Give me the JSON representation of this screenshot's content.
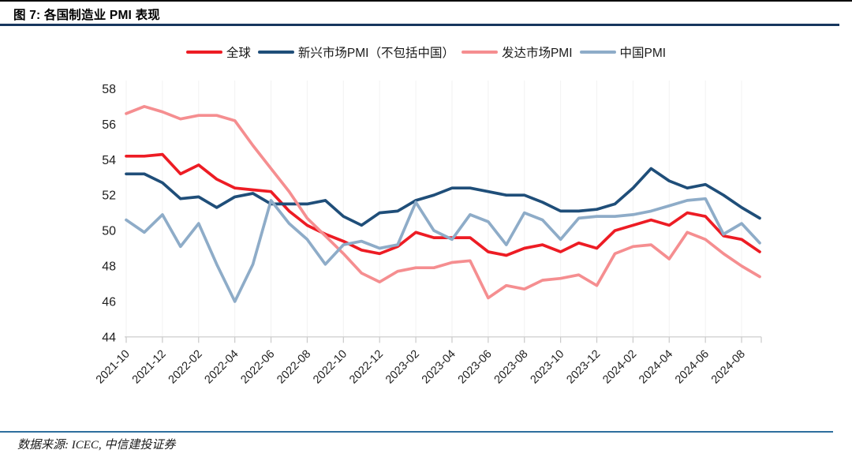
{
  "header": {
    "title": "图 7: 各国制造业 PMI 表现"
  },
  "footer": {
    "source": "数据来源: ICEC, 中信建投证券"
  },
  "colors": {
    "top_rule": "#000000",
    "title_rule": "#17375E",
    "footer_rule": "#2E6F9E",
    "axis": "#C9C9C9",
    "gridline": "#F2F2F2",
    "tick_text": "#1F1F1F"
  },
  "chart_data": {
    "type": "line",
    "title": "图 7: 各国制造业 PMI 表现",
    "xlabel": "",
    "ylabel": "",
    "ylim": [
      44,
      58
    ],
    "yticks": [
      58,
      56,
      54,
      52,
      50,
      48,
      46,
      44
    ],
    "grid": "faint vertical gridlines at labeled ticks",
    "legend_position": "top-center",
    "x": [
      "2021-10",
      "2021-11",
      "2021-12",
      "2022-01",
      "2022-02",
      "2022-03",
      "2022-04",
      "2022-05",
      "2022-06",
      "2022-07",
      "2022-08",
      "2022-09",
      "2022-10",
      "2022-11",
      "2022-12",
      "2023-01",
      "2023-02",
      "2023-03",
      "2023-04",
      "2023-05",
      "2023-06",
      "2023-07",
      "2023-08",
      "2023-09",
      "2023-10",
      "2023-11",
      "2023-12",
      "2024-01",
      "2024-02",
      "2024-03",
      "2024-04",
      "2024-05",
      "2024-06",
      "2024-07",
      "2024-08",
      "2024-09"
    ],
    "x_tick_labels": [
      "2021-10",
      "2021-12",
      "2022-02",
      "2022-04",
      "2022-06",
      "2022-08",
      "2022-10",
      "2022-12",
      "2023-02",
      "2023-04",
      "2023-06",
      "2023-08",
      "2023-10",
      "2023-12",
      "2024-02",
      "2024-04",
      "2024-06",
      "2024-08"
    ],
    "series": [
      {
        "key": "global",
        "name": "全球",
        "color": "#ED1C24",
        "values": [
          54.2,
          54.2,
          54.3,
          53.2,
          53.7,
          52.9,
          52.4,
          52.3,
          52.2,
          51.1,
          50.3,
          49.8,
          49.4,
          48.9,
          48.7,
          49.1,
          49.9,
          49.6,
          49.6,
          49.6,
          48.8,
          48.6,
          49.0,
          49.2,
          48.8,
          49.3,
          49.0,
          50.0,
          50.3,
          50.6,
          50.3,
          51.0,
          50.8,
          49.7,
          49.5,
          48.8
        ]
      },
      {
        "key": "em-ex-china",
        "name": "新兴市场PMI（不包括中国）",
        "color": "#1F4E79",
        "values": [
          53.2,
          53.2,
          52.7,
          51.8,
          51.9,
          51.3,
          51.9,
          52.1,
          51.5,
          51.5,
          51.5,
          51.7,
          50.8,
          50.3,
          51.0,
          51.1,
          51.7,
          52.0,
          52.4,
          52.4,
          52.2,
          52.0,
          52.0,
          51.6,
          51.1,
          51.1,
          51.2,
          51.5,
          52.4,
          53.5,
          52.8,
          52.4,
          52.6,
          52.0,
          51.3,
          50.7
        ]
      },
      {
        "key": "developed",
        "name": "发达市场PMI",
        "color": "#F58E90",
        "values": [
          56.6,
          57.0,
          56.7,
          56.3,
          56.5,
          56.5,
          56.2,
          54.8,
          53.5,
          52.2,
          50.7,
          49.7,
          48.7,
          47.6,
          47.1,
          47.7,
          47.9,
          47.9,
          48.2,
          48.3,
          46.2,
          46.9,
          46.7,
          47.2,
          47.3,
          47.5,
          46.9,
          48.7,
          49.1,
          49.2,
          48.4,
          49.9,
          49.5,
          48.7,
          48.0,
          47.4
        ]
      },
      {
        "key": "china",
        "name": "中国PMI",
        "color": "#8EACC8",
        "values": [
          50.6,
          49.9,
          50.9,
          49.1,
          50.4,
          48.1,
          46.0,
          48.1,
          51.7,
          50.4,
          49.5,
          48.1,
          49.2,
          49.4,
          49.0,
          49.2,
          51.6,
          50.0,
          49.5,
          50.9,
          50.5,
          49.2,
          51.0,
          50.6,
          49.5,
          50.7,
          50.8,
          50.8,
          50.9,
          51.1,
          51.4,
          51.7,
          51.8,
          49.8,
          50.4,
          49.3
        ]
      }
    ]
  }
}
